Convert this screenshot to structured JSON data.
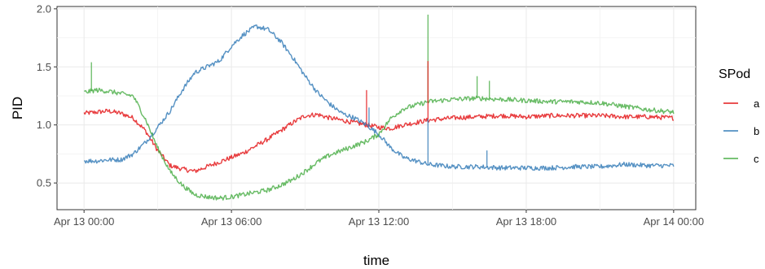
{
  "chart_data": {
    "type": "line",
    "xlabel": "time",
    "ylabel": "PID",
    "x_unit": "hours since Apr 13 00:00",
    "xlim": [
      -1.1,
      24.9
    ],
    "ylim": [
      0.27,
      2.02
    ],
    "x_ticks": [
      {
        "value": 0,
        "label": "Apr 13 00:00"
      },
      {
        "value": 6,
        "label": "Apr 13 06:00"
      },
      {
        "value": 12,
        "label": "Apr 13 12:00"
      },
      {
        "value": 18,
        "label": "Apr 13 18:00"
      },
      {
        "value": 24,
        "label": "Apr 14 00:00"
      }
    ],
    "y_ticks": [
      {
        "value": 0.5,
        "label": "0.5"
      },
      {
        "value": 1.0,
        "label": "1.0"
      },
      {
        "value": 1.5,
        "label": "1.5"
      },
      {
        "value": 2.0,
        "label": "2.0"
      }
    ],
    "grid": true,
    "legend": {
      "title": "SPod",
      "position": "right"
    },
    "series": [
      {
        "name": "a",
        "color": "#E41A1C",
        "x": [
          0,
          0.5,
          1,
          1.5,
          2,
          2.5,
          3,
          3.5,
          4,
          4.5,
          5,
          5.5,
          6,
          6.5,
          7,
          7.5,
          8,
          8.5,
          9,
          9.5,
          10,
          10.5,
          11,
          11.5,
          12,
          12.5,
          13,
          14,
          15,
          16,
          17,
          18,
          19,
          20,
          21,
          22,
          23,
          24
        ],
        "y": [
          1.1,
          1.11,
          1.12,
          1.1,
          1.06,
          0.95,
          0.78,
          0.65,
          0.62,
          0.6,
          0.64,
          0.68,
          0.72,
          0.76,
          0.82,
          0.88,
          0.95,
          1.02,
          1.08,
          1.09,
          1.06,
          1.04,
          1.02,
          1.0,
          0.98,
          0.97,
          1.0,
          1.04,
          1.06,
          1.07,
          1.08,
          1.07,
          1.08,
          1.08,
          1.08,
          1.07,
          1.07,
          1.06
        ]
      },
      {
        "name": "b",
        "color": "#377EB8",
        "x": [
          0,
          0.5,
          1,
          1.5,
          2,
          2.5,
          3,
          3.5,
          4,
          4.5,
          5,
          5.5,
          6,
          6.5,
          7,
          7.5,
          8,
          8.5,
          9,
          9.5,
          10,
          10.5,
          11,
          11.5,
          12,
          12.5,
          13,
          14,
          15,
          16,
          17,
          18,
          19,
          20,
          21,
          22,
          23,
          24
        ],
        "y": [
          0.69,
          0.69,
          0.7,
          0.7,
          0.75,
          0.85,
          0.98,
          1.12,
          1.3,
          1.45,
          1.5,
          1.55,
          1.68,
          1.78,
          1.85,
          1.82,
          1.72,
          1.58,
          1.42,
          1.28,
          1.18,
          1.1,
          1.06,
          1.0,
          0.92,
          0.8,
          0.72,
          0.66,
          0.64,
          0.64,
          0.63,
          0.63,
          0.63,
          0.64,
          0.64,
          0.66,
          0.65,
          0.65
        ]
      },
      {
        "name": "c",
        "color": "#4DAF4A",
        "x": [
          0,
          0.5,
          1,
          1.5,
          2,
          2.5,
          3,
          3.5,
          4,
          4.5,
          5,
          5.5,
          6,
          6.5,
          7,
          7.5,
          8,
          8.5,
          9,
          9.5,
          10,
          10.5,
          11,
          11.5,
          12,
          12.5,
          13,
          14,
          15,
          16,
          17,
          18,
          19,
          20,
          21,
          22,
          23,
          24
        ],
        "y": [
          1.28,
          1.3,
          1.29,
          1.27,
          1.25,
          1.05,
          0.8,
          0.6,
          0.48,
          0.4,
          0.38,
          0.37,
          0.38,
          0.4,
          0.42,
          0.44,
          0.48,
          0.53,
          0.6,
          0.68,
          0.74,
          0.78,
          0.82,
          0.86,
          0.92,
          1.06,
          1.14,
          1.2,
          1.22,
          1.23,
          1.22,
          1.21,
          1.2,
          1.2,
          1.19,
          1.16,
          1.13,
          1.11
        ]
      }
    ],
    "spikes": [
      {
        "series": "c",
        "x": 0.3,
        "y": 1.54
      },
      {
        "series": "a",
        "x": 11.5,
        "y": 1.3
      },
      {
        "series": "b",
        "x": 11.6,
        "y": 1.15
      },
      {
        "series": "c",
        "x": 14.0,
        "y": 1.95
      },
      {
        "series": "a",
        "x": 14.0,
        "y": 1.55
      },
      {
        "series": "b",
        "x": 14.0,
        "y": 1.05
      },
      {
        "series": "c",
        "x": 16.0,
        "y": 1.42
      },
      {
        "series": "c",
        "x": 16.5,
        "y": 1.38
      },
      {
        "series": "b",
        "x": 16.4,
        "y": 0.78
      }
    ]
  }
}
